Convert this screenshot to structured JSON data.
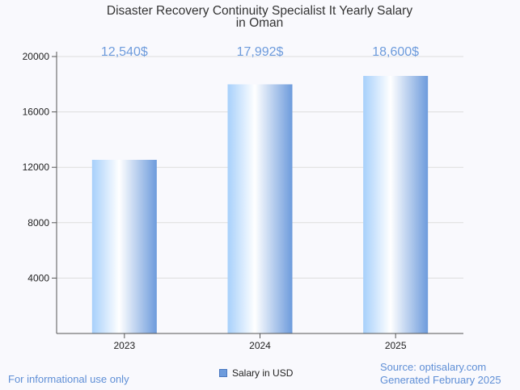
{
  "chart_data": {
    "type": "bar",
    "title_lines": [
      "Disaster Recovery Continuity Specialist It Yearly Salary",
      "in Oman"
    ],
    "categories": [
      "2023",
      "2024",
      "2025"
    ],
    "series": [
      {
        "name": "Salary in USD",
        "values": [
          12540,
          17992,
          18600
        ]
      }
    ],
    "value_labels": [
      "12,540$",
      "17,992$",
      "18,600$"
    ],
    "y_ticks": [
      4000,
      8000,
      12000,
      16000,
      20000
    ],
    "y_tick_labels": [
      "4000",
      "8000",
      "12000",
      "16000",
      "20000"
    ],
    "ylim": [
      0,
      20000
    ],
    "grid": true,
    "legend_position": "bottom"
  },
  "footer": {
    "disclaimer": "For informational use only",
    "source": "Source: optisalary.com",
    "generated": "Generated February 2025"
  },
  "colors": {
    "bar_light": "#ffffff",
    "bar_mid": "#aacdf8",
    "bar_dark": "#6d9bdc",
    "value_label": "#6d9bdc",
    "footer_text": "#5f8fd6"
  }
}
